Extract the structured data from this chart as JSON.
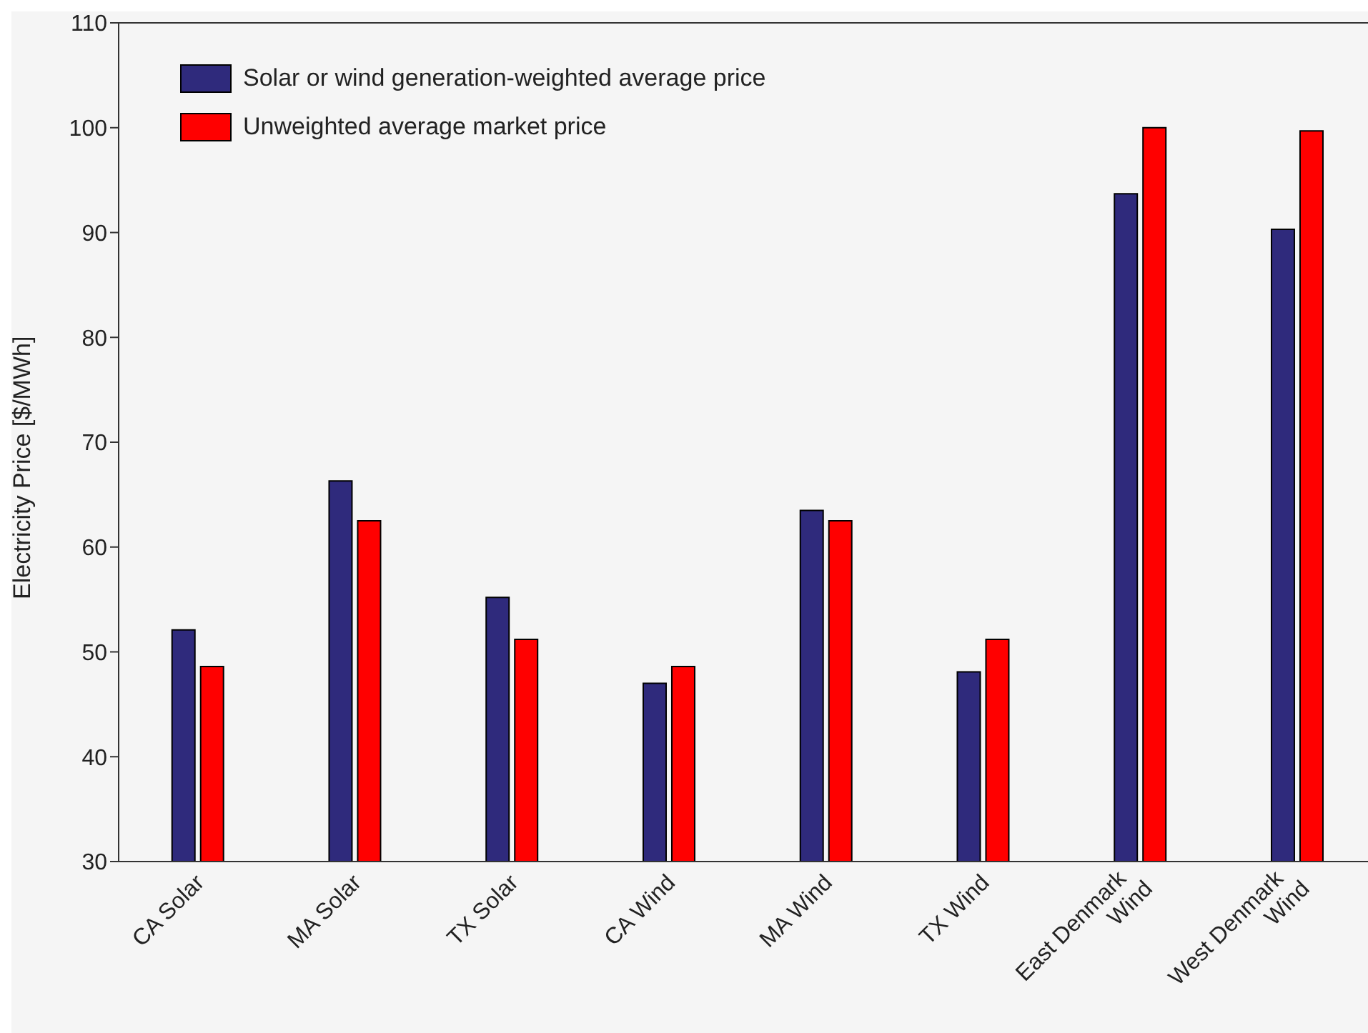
{
  "chart_data": {
    "type": "bar",
    "ylabel": "Electricity Price [$/MWh]",
    "categories": [
      "CA Solar",
      "MA Solar",
      "TX Solar",
      "CA Wind",
      "MA Wind",
      "TX Wind",
      "East Denmark Wind",
      "West Denmark Wind"
    ],
    "series": [
      {
        "name": "Solar or wind generation-weighted average price",
        "color": "#2f2a7c",
        "values": [
          52.1,
          66.3,
          55.2,
          47.0,
          63.5,
          48.1,
          93.7,
          90.3
        ]
      },
      {
        "name": "Unweighted average market price",
        "color": "#ff0000",
        "values": [
          48.6,
          62.5,
          51.2,
          48.6,
          62.5,
          51.2,
          100.0,
          99.7
        ]
      }
    ],
    "ylim": [
      30,
      110
    ],
    "yticks": [
      30,
      40,
      50,
      60,
      70,
      80,
      90,
      100,
      110
    ],
    "legend": "top left"
  }
}
